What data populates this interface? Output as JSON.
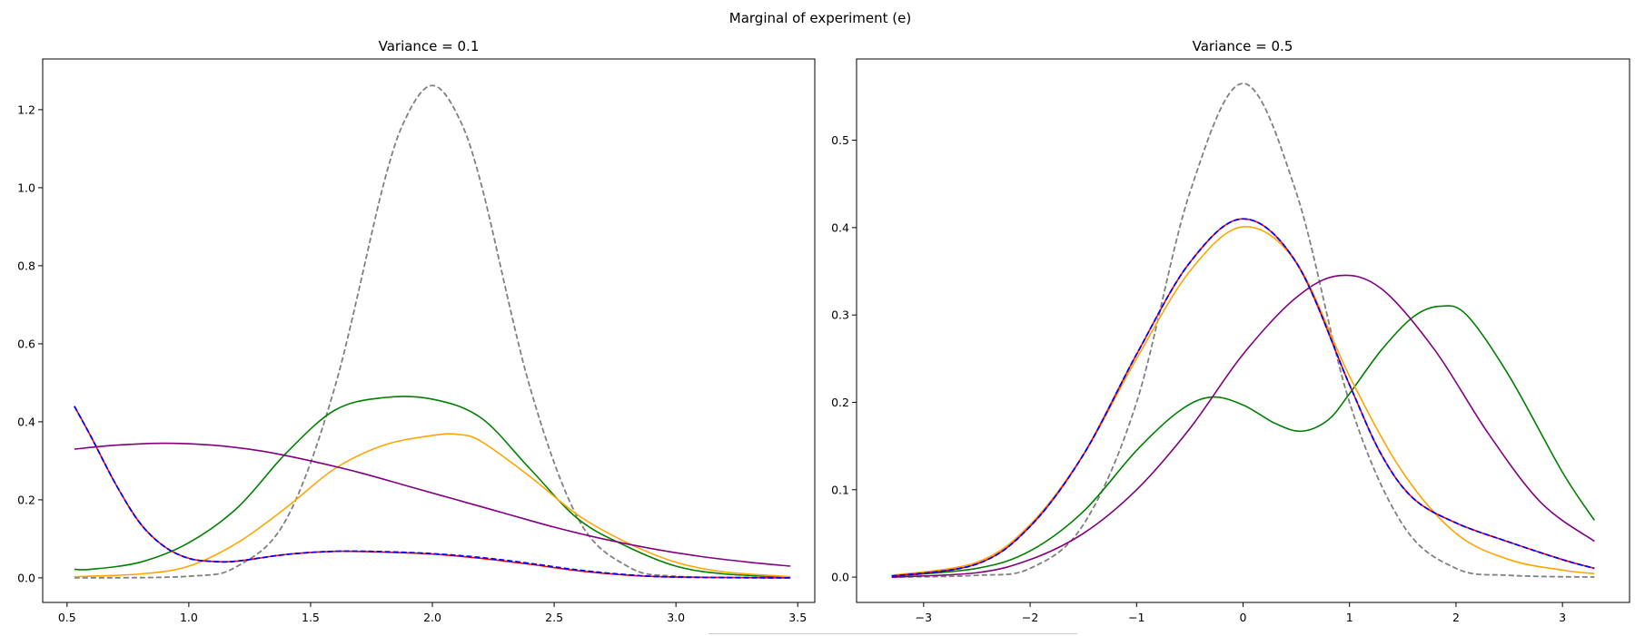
{
  "figure": {
    "suptitle": "Marginal of experiment (e)"
  },
  "chart_data": [
    {
      "type": "line",
      "title": "Variance = 0.1",
      "xlabel": "",
      "ylabel": "",
      "xlim": [
        0.4,
        3.57
      ],
      "ylim": [
        -0.063,
        1.33
      ],
      "xticks": [
        0.5,
        1.0,
        1.5,
        2.0,
        2.5,
        3.0,
        3.5
      ],
      "xtick_labels": [
        "0.5",
        "1.0",
        "1.5",
        "2.0",
        "2.5",
        "3.0",
        "3.5"
      ],
      "yticks": [
        0.0,
        0.2,
        0.4,
        0.6,
        0.8,
        1.0,
        1.2
      ],
      "ytick_labels": [
        "0.0",
        "0.2",
        "0.4",
        "0.6",
        "0.8",
        "1.0",
        "1.2"
      ],
      "grid": false,
      "series": [
        {
          "color": "#808080",
          "dashed": true,
          "x": [
            0.53,
            1.0,
            1.2,
            1.4,
            1.6,
            1.8,
            1.9,
            2.0,
            2.1,
            2.2,
            2.4,
            2.6,
            2.8,
            3.0,
            3.47
          ],
          "y": [
            0.0,
            0.004,
            0.03,
            0.15,
            0.49,
            1.01,
            1.19,
            1.262,
            1.19,
            1.01,
            0.49,
            0.15,
            0.03,
            0.004,
            0.0
          ]
        },
        {
          "color": "#008000",
          "dashed": false,
          "x": [
            0.53,
            0.6,
            0.8,
            1.0,
            1.2,
            1.4,
            1.6,
            1.8,
            2.0,
            2.2,
            2.4,
            2.6,
            2.8,
            3.0,
            3.2,
            3.47
          ],
          "y": [
            0.022,
            0.022,
            0.04,
            0.09,
            0.18,
            0.32,
            0.43,
            0.462,
            0.458,
            0.41,
            0.28,
            0.15,
            0.08,
            0.03,
            0.01,
            0.002
          ]
        },
        {
          "color": "#ffa500",
          "dashed": false,
          "x": [
            0.53,
            0.8,
            1.0,
            1.2,
            1.4,
            1.6,
            1.8,
            2.0,
            2.1,
            2.2,
            2.4,
            2.6,
            2.8,
            3.0,
            3.2,
            3.47
          ],
          "y": [
            0.003,
            0.01,
            0.03,
            0.09,
            0.18,
            0.28,
            0.34,
            0.365,
            0.368,
            0.35,
            0.26,
            0.16,
            0.09,
            0.04,
            0.015,
            0.003
          ]
        },
        {
          "color": "#800080",
          "dashed": false,
          "x": [
            0.53,
            0.7,
            0.9,
            1.1,
            1.3,
            1.5,
            1.7,
            1.9,
            2.1,
            2.3,
            2.5,
            2.7,
            2.9,
            3.1,
            3.3,
            3.47
          ],
          "y": [
            0.33,
            0.34,
            0.345,
            0.34,
            0.325,
            0.3,
            0.27,
            0.235,
            0.2,
            0.165,
            0.13,
            0.1,
            0.075,
            0.055,
            0.04,
            0.03
          ]
        },
        {
          "color": "#ff0000",
          "dashed": false,
          "x": [
            0.53,
            0.6,
            0.7,
            0.8,
            0.9,
            1.0,
            1.1,
            1.2,
            1.4,
            1.6,
            1.8,
            2.0,
            2.2,
            2.4,
            2.6,
            2.8,
            3.0,
            3.47
          ],
          "y": [
            0.44,
            0.36,
            0.24,
            0.14,
            0.08,
            0.05,
            0.042,
            0.043,
            0.06,
            0.068,
            0.066,
            0.061,
            0.05,
            0.035,
            0.018,
            0.007,
            0.002,
            0.0
          ]
        },
        {
          "color": "#0000ff",
          "dashed": true,
          "x": [
            0.53,
            0.6,
            0.7,
            0.8,
            0.9,
            1.0,
            1.1,
            1.2,
            1.4,
            1.6,
            1.8,
            2.0,
            2.2,
            2.4,
            2.6,
            2.8,
            3.0,
            3.47
          ],
          "y": [
            0.44,
            0.36,
            0.24,
            0.14,
            0.08,
            0.05,
            0.042,
            0.043,
            0.06,
            0.068,
            0.067,
            0.062,
            0.052,
            0.037,
            0.02,
            0.008,
            0.002,
            0.0
          ]
        }
      ]
    },
    {
      "type": "line",
      "title": "Variance = 0.5",
      "xlabel": "",
      "ylabel": "",
      "xlim": [
        -3.63,
        3.63
      ],
      "ylim": [
        -0.029,
        0.593
      ],
      "xticks": [
        -3,
        -2,
        -1,
        0,
        1,
        2,
        3
      ],
      "xtick_labels": [
        "−3",
        "−2",
        "−1",
        "0",
        "1",
        "2",
        "3"
      ],
      "yticks": [
        0.0,
        0.1,
        0.2,
        0.3,
        0.4,
        0.5
      ],
      "ytick_labels": [
        "0.0",
        "0.1",
        "0.2",
        "0.3",
        "0.4",
        "0.5"
      ],
      "grid": false,
      "series": [
        {
          "color": "#808080",
          "dashed": true,
          "x": [
            -3.3,
            -2.5,
            -2.0,
            -1.5,
            -1.0,
            -0.5,
            0.0,
            0.5,
            1.0,
            1.5,
            2.0,
            2.5,
            3.3
          ],
          "y": [
            0.0,
            0.002,
            0.01,
            0.06,
            0.2,
            0.44,
            0.565,
            0.44,
            0.2,
            0.06,
            0.01,
            0.002,
            0.0
          ]
        },
        {
          "color": "#008000",
          "dashed": false,
          "x": [
            -3.3,
            -2.5,
            -2.0,
            -1.5,
            -1.0,
            -0.6,
            -0.3,
            0.0,
            0.3,
            0.55,
            0.8,
            1.0,
            1.3,
            1.6,
            1.85,
            2.1,
            2.5,
            3.0,
            3.3
          ],
          "y": [
            0.001,
            0.01,
            0.03,
            0.075,
            0.145,
            0.19,
            0.206,
            0.197,
            0.176,
            0.167,
            0.18,
            0.21,
            0.26,
            0.298,
            0.31,
            0.3,
            0.23,
            0.12,
            0.065
          ]
        },
        {
          "color": "#800080",
          "dashed": false,
          "x": [
            -3.3,
            -2.5,
            -2.0,
            -1.5,
            -1.0,
            -0.5,
            0.0,
            0.5,
            0.9,
            1.3,
            1.8,
            2.3,
            2.8,
            3.3
          ],
          "y": [
            0.0,
            0.005,
            0.02,
            0.05,
            0.1,
            0.17,
            0.255,
            0.32,
            0.345,
            0.33,
            0.26,
            0.165,
            0.085,
            0.041
          ]
        },
        {
          "color": "#ffa500",
          "dashed": false,
          "x": [
            -3.3,
            -2.5,
            -2.0,
            -1.5,
            -1.0,
            -0.5,
            0.0,
            0.5,
            1.0,
            1.5,
            2.0,
            2.5,
            3.0,
            3.3
          ],
          "y": [
            0.002,
            0.017,
            0.06,
            0.14,
            0.25,
            0.35,
            0.401,
            0.36,
            0.23,
            0.12,
            0.05,
            0.02,
            0.008,
            0.004
          ]
        },
        {
          "color": "#ff0000",
          "dashed": false,
          "x": [
            -3.3,
            -2.5,
            -2.0,
            -1.5,
            -1.0,
            -0.5,
            0.0,
            0.5,
            1.0,
            1.3,
            1.6,
            2.0,
            2.5,
            3.0,
            3.3
          ],
          "y": [
            0.001,
            0.015,
            0.058,
            0.14,
            0.255,
            0.36,
            0.41,
            0.36,
            0.22,
            0.14,
            0.09,
            0.062,
            0.04,
            0.02,
            0.01
          ]
        },
        {
          "color": "#0000ff",
          "dashed": true,
          "x": [
            -3.3,
            -2.5,
            -2.0,
            -1.5,
            -1.0,
            -0.5,
            0.0,
            0.5,
            1.0,
            1.3,
            1.6,
            2.0,
            2.5,
            3.0,
            3.3
          ],
          "y": [
            0.001,
            0.015,
            0.058,
            0.14,
            0.255,
            0.36,
            0.41,
            0.36,
            0.22,
            0.14,
            0.09,
            0.062,
            0.04,
            0.02,
            0.01
          ]
        }
      ]
    }
  ]
}
